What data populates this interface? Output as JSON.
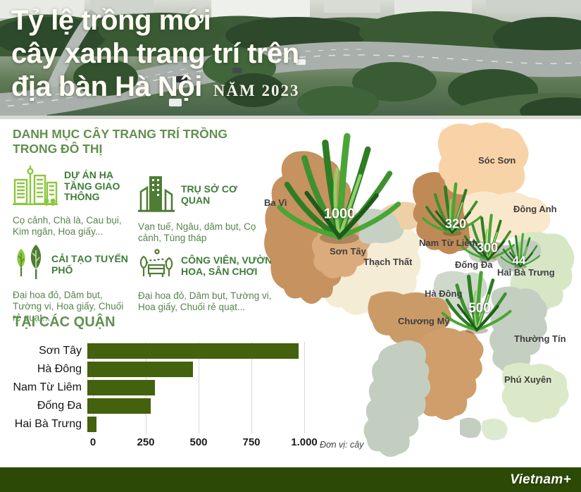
{
  "header": {
    "title_line1": "Tỷ lệ trồng mới",
    "title_line2": "cây xanh trang trí trên",
    "title_line3": "địa bàn Hà Nội",
    "year_label": "NĂM 2023"
  },
  "categories": {
    "title": "DANH MỤC CÂY TRANG TRÍ TRỒNG TRONG ĐÔ THỊ",
    "items": [
      {
        "icon": "city-infrastructure-icon",
        "label": "DỰ ÁN HẠ TẦNG GIAO THÔNG",
        "desc": "Cọ cảnh, Chà là, Cau bụi, Kim ngân, Hoa giấy..."
      },
      {
        "icon": "office-building-icon",
        "label": "TRỤ SỞ CƠ QUAN",
        "desc": "Vạn tuế, Ngâu, dâm bụt, Cọ cảnh, Tùng tháp"
      },
      {
        "icon": "street-trees-icon",
        "label": "CẢI TẠO TUYẾN PHỐ",
        "desc": "Đại hoa đỏ, Dâm bụt, Tường vi, Hoa giấy, Chuối rẻ quạt..."
      },
      {
        "icon": "park-garden-icon",
        "label": "CÔNG VIÊN, VƯỜN HOA, SÂN CHƠI",
        "desc": "Đại hoa đỏ, Dâm bụt, Tường vi, Hoa giấy, Chuối rẻ quạt..."
      }
    ]
  },
  "chart": {
    "title": "TẠI CÁC QUẬN",
    "unit_note": "Đơn vị: cây"
  },
  "chart_data": {
    "type": "bar",
    "orientation": "horizontal",
    "title": "TẠI CÁC QUẬN",
    "categories": [
      "Sơn Tây",
      "Hà Đông",
      "Nam Từ Liêm",
      "Đống Đa",
      "Hai Bà Trưng"
    ],
    "values": [
      1000,
      500,
      320,
      300,
      44
    ],
    "xlim": [
      0,
      1000
    ],
    "xticks": [
      {
        "label": "0",
        "value": 0
      },
      {
        "label": "250",
        "value": 250
      },
      {
        "label": "500",
        "value": 500
      },
      {
        "label": "750",
        "value": 750
      },
      {
        "label": "1.000",
        "value": 1000
      }
    ],
    "grid": true,
    "legend": false,
    "bar_color": "#44610e",
    "unit": "Đơn vị: cây"
  },
  "map": {
    "district_labels": [
      "Ba Vì",
      "Sóc Sơn",
      "Đông Anh",
      "Nam Từ Liêm",
      "Sơn Tây",
      "Thạch Thất",
      "Đống Đa",
      "Hai Bà Trưng",
      "Hà Đông",
      "Chương Mỹ",
      "Thường Tín",
      "Phú Xuyên"
    ],
    "value_badges": [
      {
        "district": "Sơn Tây",
        "value": "1000"
      },
      {
        "district": "Nam Từ Liêm",
        "value": "320"
      },
      {
        "district": "Đống Đa",
        "value": "300"
      },
      {
        "district": "Hai Bà Trưng",
        "value": "44"
      },
      {
        "district": "Hà Đông",
        "value": "500"
      }
    ]
  },
  "footer": {
    "brand": "Vietnam+"
  },
  "colors": {
    "bar_green": "#44610e",
    "footer_green": "#2c4a06",
    "title_green": "#61904f",
    "label_green": "#3e7c38",
    "desc_green": "#55854a"
  }
}
